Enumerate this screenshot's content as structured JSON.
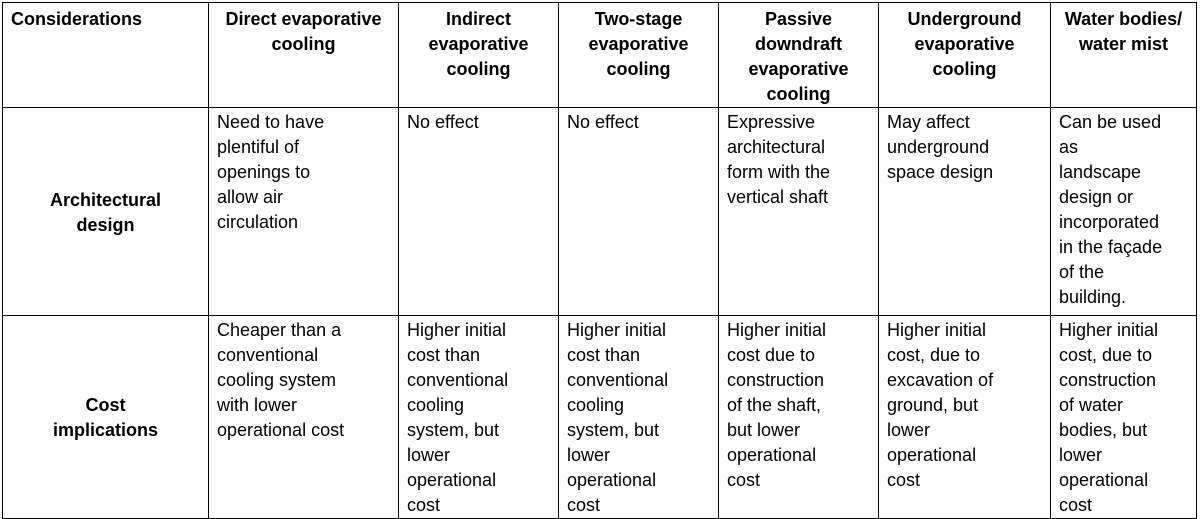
{
  "table": {
    "headers": [
      "Considerations",
      "Direct\nevaporative\ncooling",
      "Indirect\nevaporative\ncooling",
      "Two-stage\nevaporative\ncooling",
      "Passive\ndowndraft\nevaporative\ncooling",
      "Underground\nevaporative\ncooling",
      "Water\nbodies/\nwater mist"
    ],
    "rows": [
      {
        "label": "Architectural\ndesign",
        "cells": [
          "Need to have\nplentiful of\nopenings to\nallow air\ncirculation",
          "No effect",
          "No effect",
          "Expressive\narchitectural\nform with the\nvertical shaft",
          "May affect\nunderground\nspace design",
          "Can be used\nas\nlandscape\ndesign or\nincorporated\nin the façade\nof the\nbuilding."
        ]
      },
      {
        "label": "Cost\nimplications",
        "cells": [
          "Cheaper than a\nconventional\ncooling system\nwith lower\noperational cost",
          "Higher initial\ncost than\nconventional\ncooling\nsystem, but\nlower\noperational\ncost",
          "Higher initial\ncost than\nconventional\ncooling\nsystem, but\nlower\noperational\ncost",
          "Higher initial\ncost due to\nconstruction\nof the shaft,\nbut lower\noperational\ncost",
          "Higher initial\ncost, due to\nexcavation of\nground, but\nlower\noperational\ncost",
          "Higher initial\ncost, due to\nconstruction\nof water\nbodies, but\nlower\noperational\ncost"
        ]
      }
    ]
  }
}
